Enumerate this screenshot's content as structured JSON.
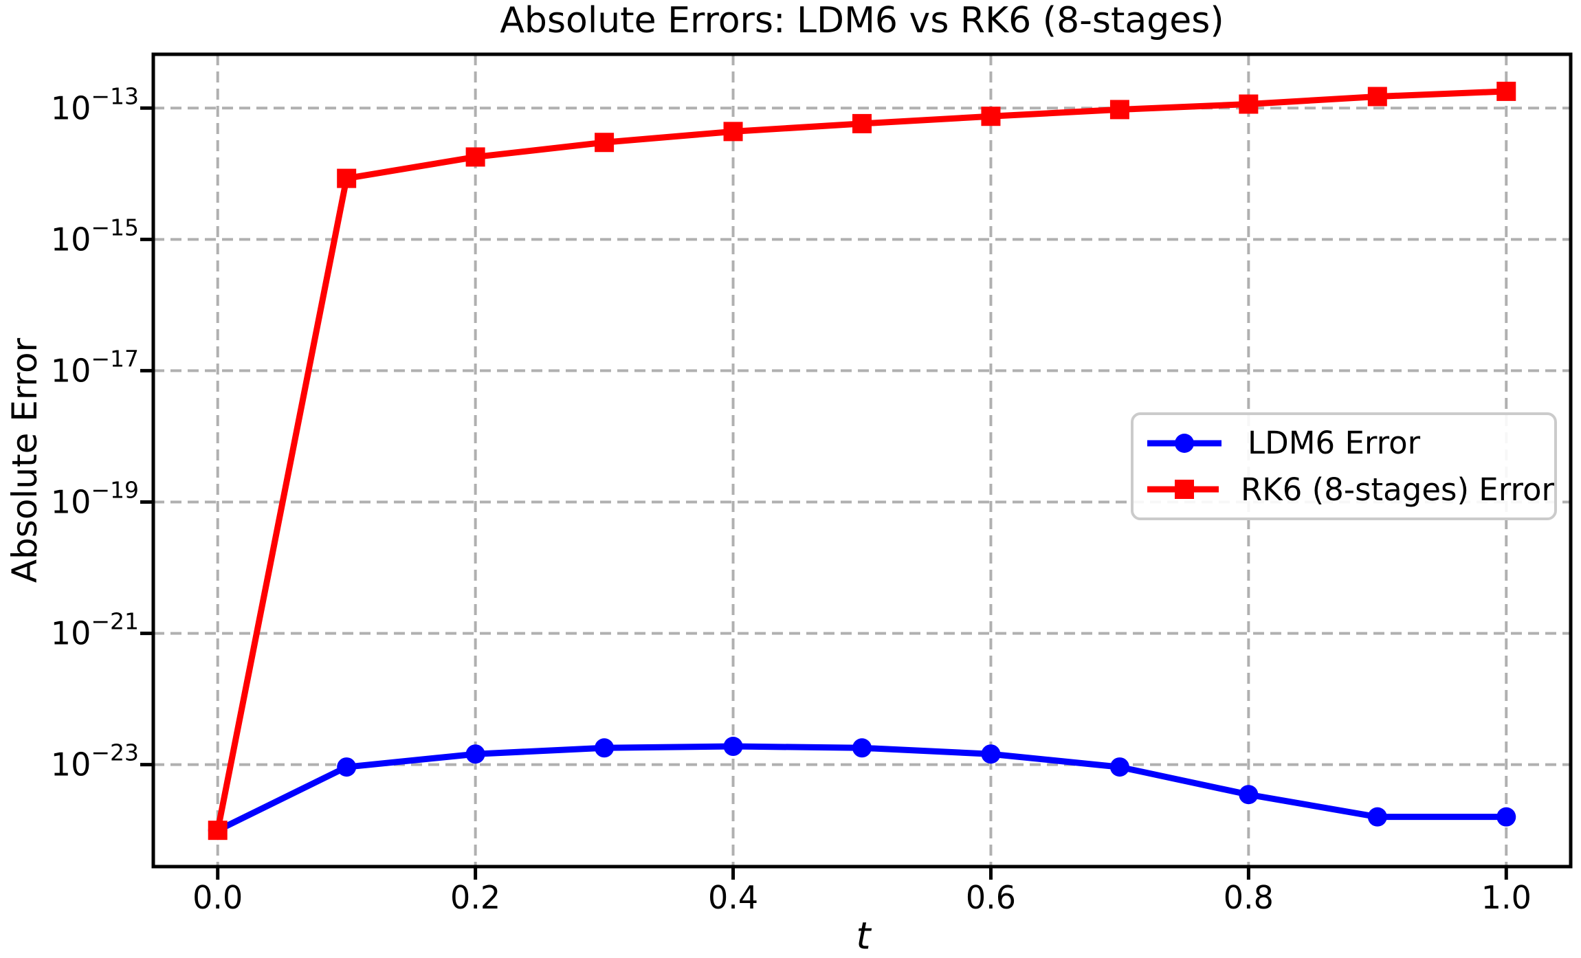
{
  "chart_data": {
    "type": "line",
    "title": "Absolute Errors: LDM6 vs RK6 (8-stages)",
    "xlabel": "t",
    "ylabel": "Absolute Error",
    "yscale": "log",
    "grid": true,
    "grid_style": "dashed",
    "grid_color": "#b0b0b0",
    "legend_position": "center right",
    "x": [
      0.0,
      0.1,
      0.2,
      0.3,
      0.4,
      0.5,
      0.6,
      0.7,
      0.8,
      0.9,
      1.0
    ],
    "series": [
      {
        "name": "LDM6 Error",
        "color": "#0000ff",
        "marker": "circle",
        "values": [
          1e-24,
          9.2e-24,
          1.45e-23,
          1.8e-23,
          1.9e-23,
          1.8e-23,
          1.45e-23,
          9.2e-24,
          3.5e-24,
          1.6e-24,
          1.6e-24
        ]
      },
      {
        "name": "RK6 (8-stages) Error",
        "color": "#ff0000",
        "marker": "square",
        "values": [
          1e-24,
          8.5e-15,
          1.8e-14,
          3e-14,
          4.4e-14,
          5.8e-14,
          7.5e-14,
          9.5e-14,
          1.15e-13,
          1.5e-13,
          1.8e-13
        ]
      }
    ],
    "xticks": {
      "values": [
        0.0,
        0.2,
        0.4,
        0.6,
        0.8,
        1.0
      ],
      "labels": [
        "0.0",
        "0.2",
        "0.4",
        "0.6",
        "0.8",
        "1.0"
      ]
    },
    "yticks": {
      "exponents": [
        -13,
        -15,
        -17,
        -19,
        -21,
        -23
      ]
    },
    "xlim": [
      -0.05,
      1.05
    ],
    "ylim": [
      2.8e-25,
      6.6e-13
    ]
  }
}
